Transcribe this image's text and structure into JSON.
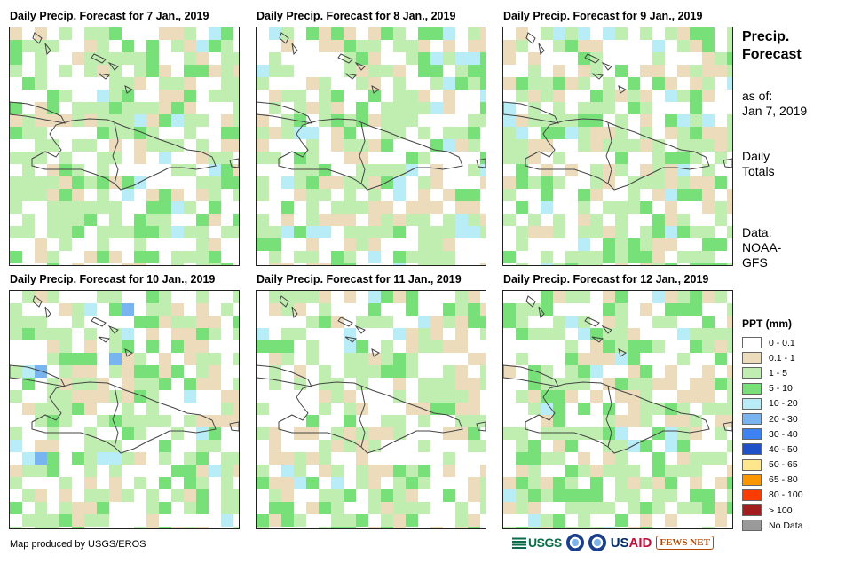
{
  "panels": [
    {
      "title": "Daily Precip. Forecast for 7 Jan., 2019"
    },
    {
      "title": "Daily Precip. Forecast for 8 Jan., 2019"
    },
    {
      "title": "Daily Precip. Forecast for 9 Jan., 2019"
    },
    {
      "title": "Daily Precip. Forecast for 10 Jan., 2019"
    },
    {
      "title": "Daily Precip. Forecast for 11 Jan., 2019"
    },
    {
      "title": "Daily Precip. Forecast for 12 Jan., 2019"
    }
  ],
  "sidebar": {
    "heading_line1": "Precip.",
    "heading_line2": "Forecast",
    "asof_label": "as of:",
    "asof_date": "Jan 7, 2019",
    "totals_line1": "Daily",
    "totals_line2": "Totals",
    "data_label": "Data:",
    "data_source_line1": "NOAA-",
    "data_source_line2": "GFS"
  },
  "legend": {
    "title": "PPT (mm)",
    "items": [
      {
        "label": "0 - 0.1",
        "color": "#ffffff"
      },
      {
        "label": "0.1 - 1",
        "color": "#ecdcbc"
      },
      {
        "label": "1 - 5",
        "color": "#bfeeb0"
      },
      {
        "label": "5 - 10",
        "color": "#78e078"
      },
      {
        "label": "10 - 20",
        "color": "#b8ecf6"
      },
      {
        "label": "20 - 30",
        "color": "#78b4f0"
      },
      {
        "label": "30 - 40",
        "color": "#3c82f0"
      },
      {
        "label": "40 - 50",
        "color": "#1e50c8"
      },
      {
        "label": "50 - 65",
        "color": "#fee68c"
      },
      {
        "label": "65 - 80",
        "color": "#fa9600"
      },
      {
        "label": "80 - 100",
        "color": "#fa3c00"
      },
      {
        "label": "> 100",
        "color": "#a01e1e"
      },
      {
        "label": "No Data",
        "color": "#9a9a9a"
      }
    ]
  },
  "footer": {
    "credit": "Map produced by USGS/EROS",
    "logo_usgs": "USGS",
    "logo_usaid_blue": "US",
    "logo_usaid_red": "AID",
    "logo_fews": "FEWS NET"
  }
}
